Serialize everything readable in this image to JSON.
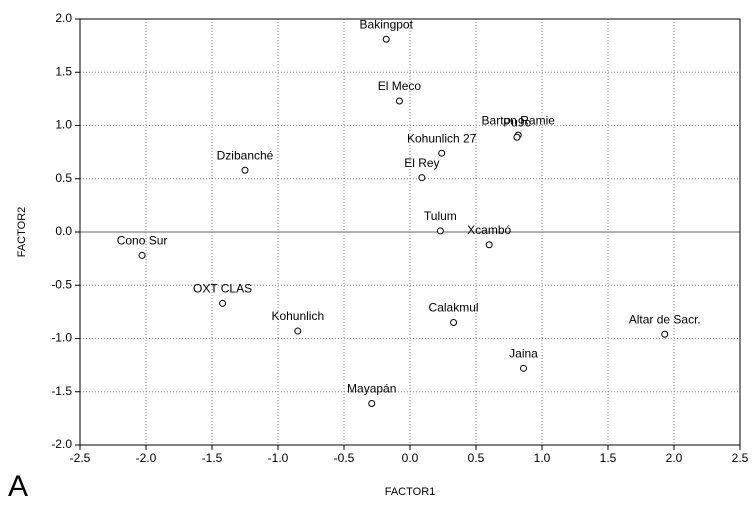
{
  "chart_data": {
    "type": "scatter",
    "panel_label": "A",
    "x_label": "FACTOR1",
    "y_label": "FACTOR2",
    "xlim": [
      -2.5,
      2.5
    ],
    "xticks": [
      -2.5,
      {
        "value": -2,
        "label": "-2.0"
      },
      -1.5,
      {
        "value": -1,
        "label": "-1.0"
      },
      -0.5,
      {
        "value": 0,
        "label": "0.0"
      },
      0.5,
      {
        "value": 1,
        "label": "1.0"
      },
      1.5,
      {
        "value": 2,
        "label": "2.0"
      },
      2.5
    ],
    "ylim": [
      -2,
      2
    ],
    "yticks": [
      {
        "value": -2,
        "label": "-2.0"
      },
      -1.5,
      {
        "value": -1,
        "label": "-1.0"
      },
      -0.5,
      {
        "value": 0,
        "label": "0.0"
      },
      0.5,
      {
        "value": 1,
        "label": "1.0"
      },
      1.5,
      {
        "value": 2,
        "label": "2.0"
      }
    ],
    "grid": true,
    "zero_line": true,
    "color": "#000000",
    "labels": [
      "Bakingpot",
      "El Meco",
      "Barton Ramie",
      "Pu9c",
      "Kohunlich 27",
      "El Rey",
      "Dzibanché",
      "Tulum",
      "Xcambó",
      "Cono Sur",
      "OXT CLAS",
      "Kohunlich",
      "Calakmul",
      "Altar de Sacr.",
      "Jaina",
      "Mayapán"
    ],
    "x": [
      -0.18,
      -0.08,
      0.82,
      0.81,
      0.24,
      0.09,
      -1.25,
      0.23,
      0.6,
      -2.03,
      -1.42,
      -0.85,
      0.33,
      1.93,
      0.86,
      -0.29
    ],
    "values": [
      1.81,
      1.23,
      0.91,
      0.89,
      0.74,
      0.51,
      0.58,
      0.01,
      -0.12,
      -0.22,
      -0.67,
      -0.93,
      -0.85,
      -0.96,
      -1.28,
      -1.61
    ]
  }
}
